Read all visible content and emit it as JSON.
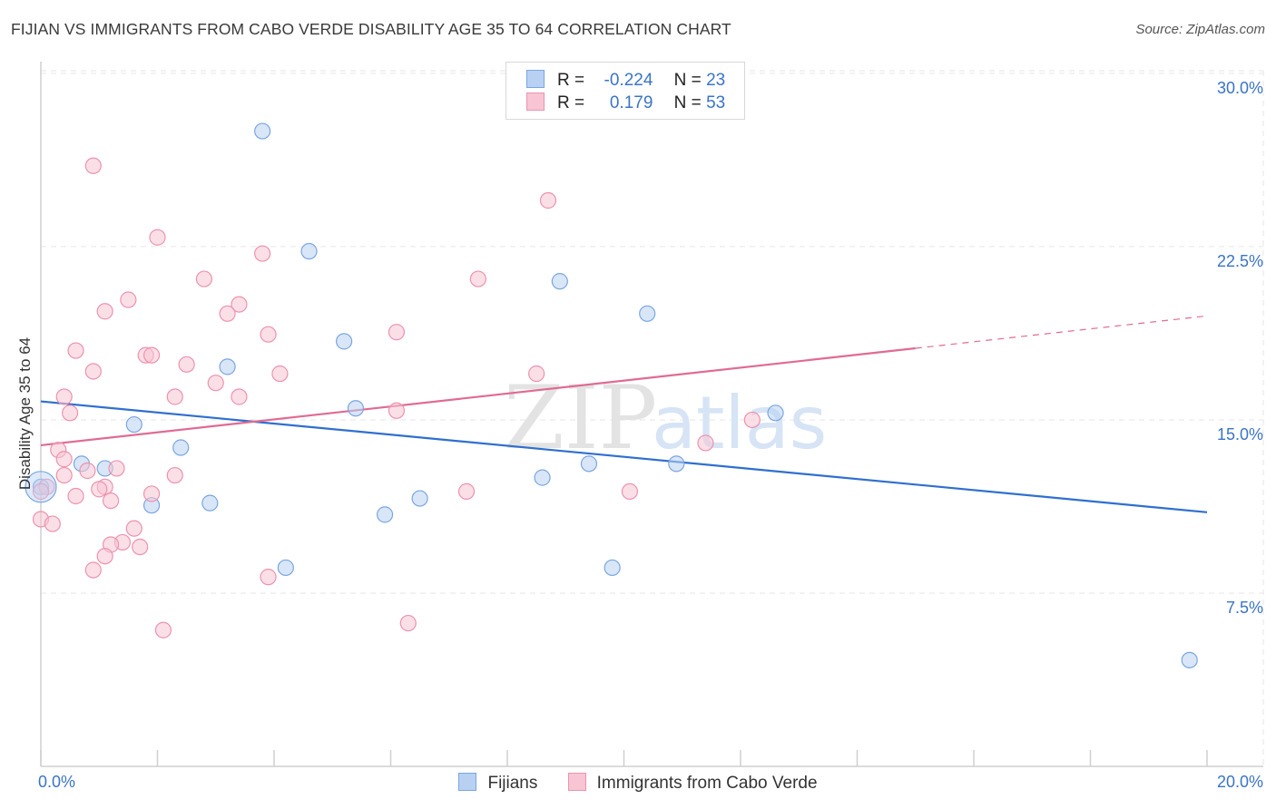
{
  "title": "FIJIAN VS IMMIGRANTS FROM CABO VERDE DISABILITY AGE 35 TO 64 CORRELATION CHART",
  "source": "Source: ZipAtlas.com",
  "watermark": {
    "zip": "ZIP",
    "atlas": "atlas"
  },
  "legend": {
    "r_label": "R =",
    "n_label": "N =",
    "fijians": {
      "r": "-0.224",
      "n": "23"
    },
    "cabo": {
      "r": "0.179",
      "n": "53"
    }
  },
  "colors": {
    "blue_fill": "#b8d1f3",
    "blue_stroke": "#7aa6e0",
    "blue_line": "#2f6fcf",
    "pink_fill": "#f7c5d4",
    "pink_stroke": "#ec93ae",
    "pink_line": "#e06b92",
    "grid": "#e6e6e6",
    "axis_text": "#3a74c6"
  },
  "chart_data": {
    "type": "scatter",
    "title": "FIJIAN VS IMMIGRANTS FROM CABO VERDE DISABILITY AGE 35 TO 64 CORRELATION CHART",
    "ylabel": "Disability Age 35 to 64",
    "xlabel": "",
    "xlim": [
      0,
      20
    ],
    "ylim": [
      0,
      31
    ],
    "y_ticks": [
      7.5,
      15.0,
      22.5,
      30.0
    ],
    "y_tick_labels": [
      "7.5%",
      "15.0%",
      "22.5%",
      "30.0%"
    ],
    "x_tick_labels": {
      "min": "0.0%",
      "max": "20.0%"
    },
    "series": [
      {
        "name": "Fijians",
        "color": "blue",
        "points": [
          [
            3.8,
            27.5
          ],
          [
            4.6,
            22.3
          ],
          [
            5.2,
            18.4
          ],
          [
            8.9,
            21.0
          ],
          [
            10.4,
            19.6
          ],
          [
            3.2,
            17.3
          ],
          [
            1.6,
            14.8
          ],
          [
            5.4,
            15.5
          ],
          [
            12.6,
            15.3
          ],
          [
            2.4,
            13.8
          ],
          [
            0.7,
            13.1
          ],
          [
            1.1,
            12.9
          ],
          [
            0.0,
            12.1
          ],
          [
            8.6,
            12.5
          ],
          [
            9.4,
            13.1
          ],
          [
            10.9,
            13.1
          ],
          [
            1.9,
            11.3
          ],
          [
            2.9,
            11.4
          ],
          [
            6.5,
            11.6
          ],
          [
            5.9,
            10.9
          ],
          [
            4.2,
            8.6
          ],
          [
            9.8,
            8.6
          ],
          [
            19.7,
            4.6
          ]
        ],
        "trend": {
          "x": [
            0,
            20
          ],
          "y": [
            15.8,
            11.0
          ]
        }
      },
      {
        "name": "Immigrants from Cabo Verde",
        "color": "pink",
        "points": [
          [
            0.9,
            26.0
          ],
          [
            8.7,
            24.5
          ],
          [
            2.0,
            22.9
          ],
          [
            3.8,
            22.2
          ],
          [
            2.8,
            21.1
          ],
          [
            7.5,
            21.1
          ],
          [
            1.5,
            20.2
          ],
          [
            3.4,
            20.0
          ],
          [
            1.1,
            19.7
          ],
          [
            3.2,
            19.6
          ],
          [
            3.9,
            18.7
          ],
          [
            6.1,
            18.8
          ],
          [
            0.6,
            18.0
          ],
          [
            1.8,
            17.8
          ],
          [
            1.9,
            17.8
          ],
          [
            2.5,
            17.4
          ],
          [
            0.9,
            17.1
          ],
          [
            4.1,
            17.0
          ],
          [
            8.5,
            17.0
          ],
          [
            3.0,
            16.6
          ],
          [
            0.4,
            16.0
          ],
          [
            2.3,
            16.0
          ],
          [
            3.4,
            16.0
          ],
          [
            0.5,
            15.3
          ],
          [
            6.1,
            15.4
          ],
          [
            12.2,
            15.0
          ],
          [
            11.4,
            14.0
          ],
          [
            0.3,
            13.7
          ],
          [
            0.4,
            13.3
          ],
          [
            0.8,
            12.8
          ],
          [
            1.3,
            12.9
          ],
          [
            0.4,
            12.6
          ],
          [
            2.3,
            12.6
          ],
          [
            0.1,
            12.1
          ],
          [
            1.1,
            12.1
          ],
          [
            1.0,
            12.0
          ],
          [
            7.3,
            11.9
          ],
          [
            10.1,
            11.9
          ],
          [
            1.9,
            11.8
          ],
          [
            0.6,
            11.7
          ],
          [
            1.2,
            11.5
          ],
          [
            0.0,
            10.7
          ],
          [
            0.2,
            10.5
          ],
          [
            1.6,
            10.3
          ],
          [
            1.4,
            9.7
          ],
          [
            1.2,
            9.6
          ],
          [
            1.7,
            9.5
          ],
          [
            1.1,
            9.1
          ],
          [
            0.9,
            8.5
          ],
          [
            3.9,
            8.2
          ],
          [
            6.3,
            6.2
          ],
          [
            2.1,
            5.9
          ],
          [
            0.0,
            11.9
          ]
        ],
        "trend": {
          "x": [
            0,
            15
          ],
          "y": [
            13.9,
            18.1
          ]
        },
        "trend_dashed": {
          "x": [
            15,
            20
          ],
          "y": [
            18.1,
            19.5
          ]
        }
      }
    ],
    "bottom_legend": [
      "Fijians",
      "Immigrants from Cabo Verde"
    ]
  }
}
